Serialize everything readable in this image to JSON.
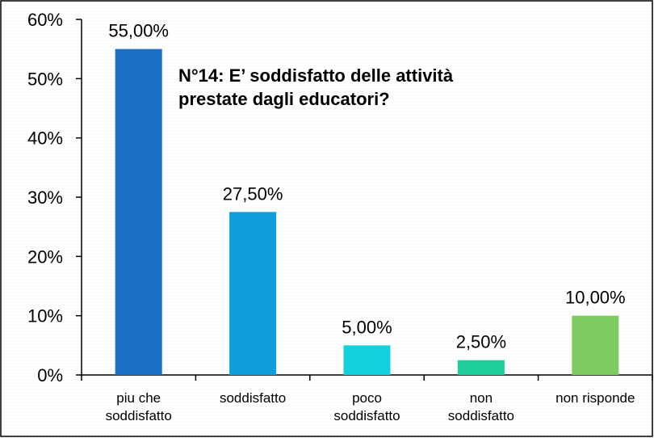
{
  "chart_data": {
    "type": "bar",
    "title_lines": [
      "N°14: E’ soddisfatto delle attività",
      "prestate dagli educatori?"
    ],
    "categories": [
      [
        "piu che",
        "soddisfatto"
      ],
      [
        "soddisfatto"
      ],
      [
        "poco",
        "soddisfatto"
      ],
      [
        "non",
        "soddisfatto"
      ],
      [
        "non risponde"
      ]
    ],
    "values": [
      55.0,
      27.5,
      5.0,
      2.5,
      10.0
    ],
    "data_labels": [
      "55,00%",
      "27,50%",
      "5,00%",
      "2,50%",
      "10,00%"
    ],
    "bar_colors": [
      "#1b6fc5",
      "#0f9edb",
      "#15d0dd",
      "#1dce9c",
      "#7ecb62"
    ],
    "y_ticks": [
      "0%",
      "10%",
      "20%",
      "30%",
      "40%",
      "50%",
      "60%"
    ],
    "ylim": [
      0,
      60
    ],
    "grid": false,
    "legend": "none"
  }
}
